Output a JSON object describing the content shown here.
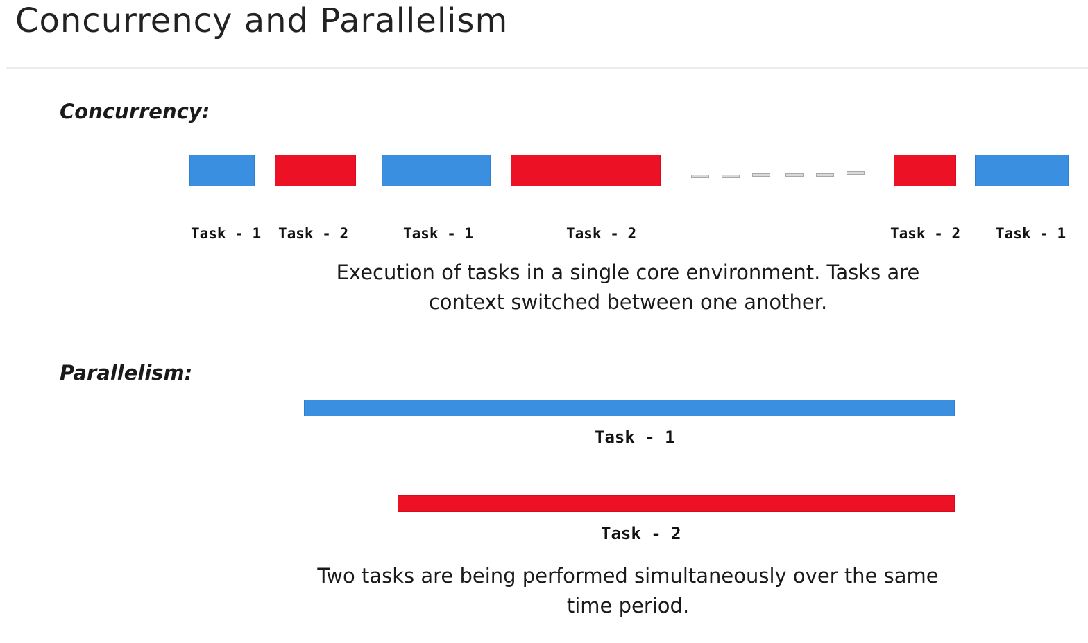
{
  "title": "Concurrency and Parallelism",
  "colors": {
    "task_1": "#3b8fe0",
    "task_2": "#ec1125",
    "separator": "#ececec"
  },
  "concurrency": {
    "heading": "Concurrency:",
    "timeline": [
      {
        "task": "task-1",
        "label": "Task - 1"
      },
      {
        "task": "task-2",
        "label": "Task - 2"
      },
      {
        "task": "task-1",
        "label": "Task - 1"
      },
      {
        "task": "task-2",
        "label": "Task - 2"
      },
      {
        "task": "task-2",
        "label": "Task - 2"
      },
      {
        "task": "task-1",
        "label": "Task - 1"
      }
    ],
    "caption_line_1": "Execution of tasks in a single core environment. Tasks are",
    "caption_line_2": "context switched between one another."
  },
  "parallelism": {
    "heading": "Parallelism:",
    "task_1_label": "Task - 1",
    "task_2_label": "Task - 2",
    "caption_line_1": "Two tasks are being performed simultaneously over the same",
    "caption_line_2": "time period."
  }
}
